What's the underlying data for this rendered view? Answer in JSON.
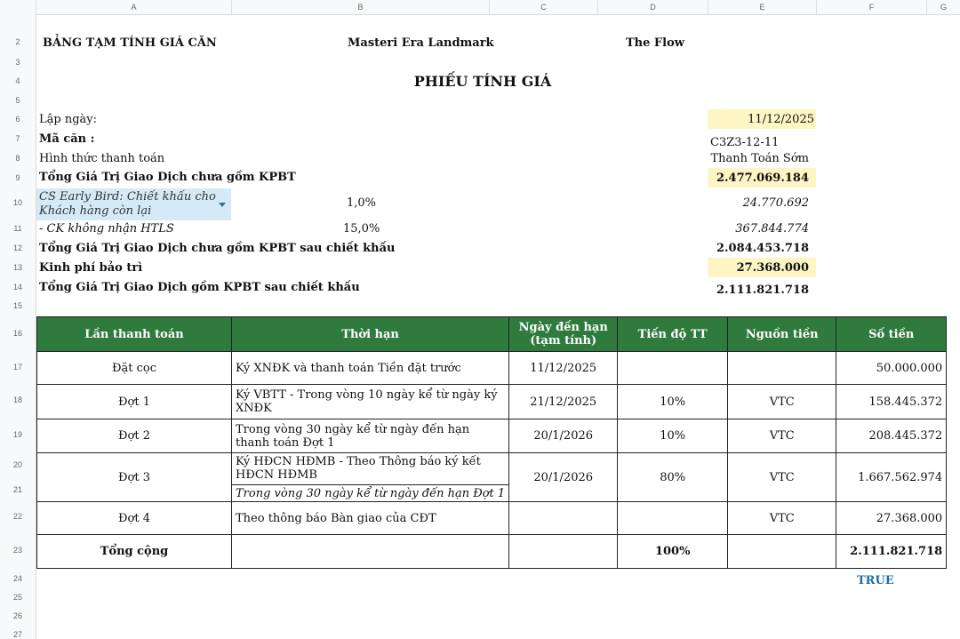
{
  "columns": [
    "A",
    "B",
    "C",
    "D",
    "E",
    "F",
    "G"
  ],
  "rows": [
    "2",
    "3",
    "4",
    "5",
    "6",
    "7",
    "8",
    "9",
    "10",
    "11",
    "12",
    "13",
    "14",
    "15",
    "16",
    "17",
    "18",
    "19",
    "20",
    "21",
    "22",
    "23",
    "24",
    "25",
    "26",
    "27"
  ],
  "header": {
    "left": "BẢNG  TẠM TÍNH GIÁ CĂN",
    "project": "Masteri Era Landmark",
    "zone": "The Flow",
    "title": "PHIẾU TÍNH GIÁ"
  },
  "info": {
    "date_label": "Lập ngày:",
    "date_value": "11/12/2025",
    "unit_label": "Mã căn :",
    "unit_value": "C3Z3-12-11",
    "payment_label": "Hình thức thanh toán",
    "payment_value": "Thanh Toán Sớm",
    "total_excl_label": "Tổng Giá Trị Giao Dịch chưa gồm KPBT",
    "total_excl_value": "2.477.069.184",
    "early_bird_label": "CS Early Bird: Chiết khấu cho Khách hàng còn lại",
    "early_bird_pct": "1,0%",
    "early_bird_value": "24.770.692",
    "no_htls_label": "- CK không nhận HTLS",
    "no_htls_pct": "15,0%",
    "no_htls_value": "367.844.774",
    "after_disc_label": "Tổng Giá Trị Giao Dịch chưa gồm KPBT sau chiết khấu",
    "after_disc_value": "2.084.453.718",
    "maint_label": "Kinh phí bảo trì",
    "maint_value": "27.368.000",
    "grand_label": "Tổng Giá Trị Giao Dịch gồm KPBT sau chiết khấu",
    "grand_value": "2.111.821.718"
  },
  "table": {
    "headers": [
      "Lần thanh toán",
      "Thời hạn",
      "Ngày đến hạn (tạm tính)",
      "Tiến độ TT",
      "Nguồn tiền",
      "Số tiền"
    ],
    "rows": [
      {
        "name": "Đặt cọc",
        "term": "Ký XNĐK và thanh toán Tiền đặt trước",
        "date": "11/12/2025",
        "pct": "",
        "src": "",
        "amount": "50.000.000"
      },
      {
        "name": "Đợt 1",
        "term": "Ký VBTT - Trong vòng 10 ngày kể từ ngày ký XNĐK",
        "date": "21/12/2025",
        "pct": "10%",
        "src": "VTC",
        "amount": "158.445.372"
      },
      {
        "name": "Đợt 2",
        "term": "Trong vòng 30 ngày kể từ ngày đến hạn thanh toán Đợt 1",
        "date": "20/1/2026",
        "pct": "10%",
        "src": "VTC",
        "amount": "208.445.372"
      },
      {
        "name": "Đợt 3",
        "term": "Ký HĐCN HĐMB - Theo Thông báo ký kết HĐCN HĐMB",
        "term2": "Trong vòng 30 ngày kể từ ngày đến hạn Đợt 1",
        "date": "20/1/2026",
        "pct": "80%",
        "src": "VTC",
        "amount": "1.667.562.974"
      },
      {
        "name": "Đợt 4",
        "term": "Theo thông báo Bàn giao của CĐT",
        "date": "",
        "pct": "",
        "src": "VTC",
        "amount": "27.368.000"
      }
    ],
    "total": {
      "name": "Tổng cộng",
      "pct": "100%",
      "amount": "2.111.821.718"
    }
  },
  "check": "TRUE"
}
